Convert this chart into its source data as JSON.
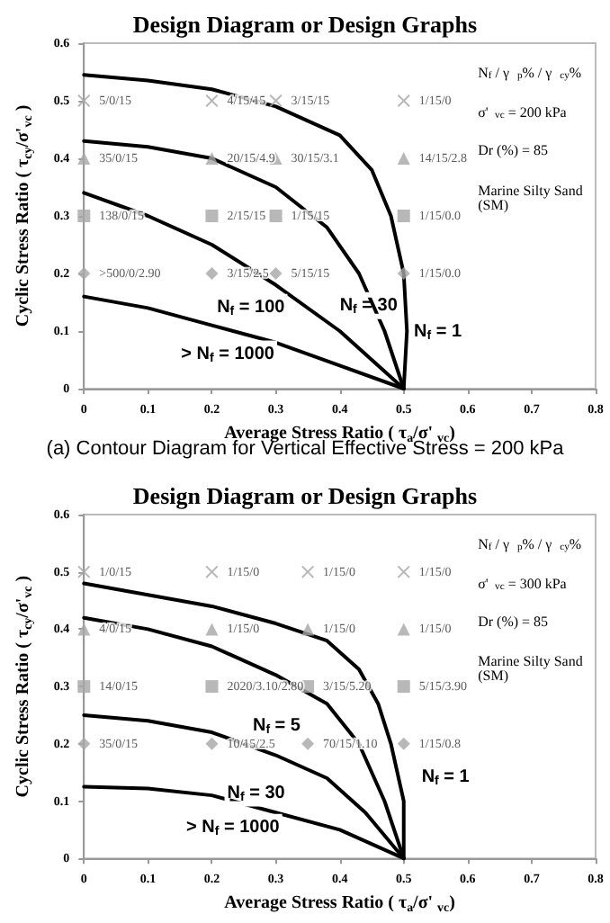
{
  "chart_data": [
    {
      "type": "line",
      "title": "Design Diagram or Design Graphs",
      "subtitle": "(a) Contour Diagram for Vertical Effective Stress = 200 kPa",
      "xlabel": "Average Stress Ratio ( τ$_{a}$/σ' $_{vc}$)",
      "ylabel": "Cyclic Stress Ratio ( τ$_{cy}$/σ'$_{vc}$ )",
      "xlim": [
        0,
        0.8
      ],
      "ylim": [
        0,
        0.6
      ],
      "xticks": [
        0,
        0.1,
        0.2,
        0.3,
        0.4,
        0.5,
        0.6,
        0.7,
        0.8
      ],
      "yticks": [
        0,
        0.1,
        0.2,
        0.3,
        0.4,
        0.5,
        0.6
      ],
      "grid": false,
      "marker": "none",
      "line_style": "solid",
      "annotations": [
        "N$_{f}$ / γ$_{p}$% / γ$_{cy}$%",
        "σ'$_{vc}$ = 200 kPa",
        "Dr (%) = 85",
        "Marine Silty Sand (SM)",
        "N$_{f}$ = 100",
        "N$_{f}$ = 30",
        "N$_{f}$ = 1",
        "> N$_{f}$ = 1000"
      ],
      "series": [
        {
          "type": "line",
          "color": "#000000",
          "x": [
            0,
            0.1,
            0.2,
            0.3,
            0.4,
            0.45,
            0.48,
            0.5,
            0.505,
            0.5
          ],
          "values": [
            0.545,
            0.535,
            0.52,
            0.49,
            0.44,
            0.38,
            0.3,
            0.2,
            0.1,
            0
          ]
        },
        {
          "type": "line",
          "color": "#000000",
          "x": [
            0,
            0.1,
            0.2,
            0.3,
            0.38,
            0.43,
            0.47,
            0.5
          ],
          "values": [
            0.43,
            0.42,
            0.4,
            0.35,
            0.28,
            0.2,
            0.1,
            0
          ]
        },
        {
          "type": "line",
          "color": "#000000",
          "x": [
            0,
            0.1,
            0.2,
            0.3,
            0.4,
            0.5
          ],
          "values": [
            0.34,
            0.3,
            0.25,
            0.18,
            0.1,
            0
          ]
        },
        {
          "type": "line",
          "color": "#000000",
          "x": [
            0,
            0.1,
            0.2,
            0.3,
            0.4,
            0.5
          ],
          "values": [
            0.16,
            0.14,
            0.11,
            0.08,
            0.04,
            0
          ]
        },
        {
          "type": "scatter",
          "marker": "cross",
          "color": "#a6a6a6",
          "x": [
            0,
            0.2,
            0.3,
            0.5
          ],
          "values": [
            0.5,
            0.5,
            0.5,
            0.5
          ],
          "value_labels": [
            "5/0/15",
            "4/15/15",
            "3/15/15",
            "1/15/0"
          ]
        },
        {
          "type": "scatter",
          "marker": "triangle",
          "color": "#a6a6a6",
          "x": [
            0,
            0.2,
            0.3,
            0.5
          ],
          "values": [
            0.4,
            0.4,
            0.4,
            0.4
          ],
          "value_labels": [
            "35/0/15",
            "20/15/4.9",
            "30/15/3.1",
            "14/15/2.8"
          ]
        },
        {
          "type": "scatter",
          "marker": "square",
          "color": "#a6a6a6",
          "x": [
            0,
            0.2,
            0.3,
            0.5
          ],
          "values": [
            0.3,
            0.3,
            0.3,
            0.3
          ],
          "value_labels": [
            "138/0/15",
            "2/15/15",
            "1/15/15",
            "1/15/0.0"
          ]
        },
        {
          "type": "scatter",
          "marker": "diamond",
          "color": "#a6a6a6",
          "x": [
            0,
            0.2,
            0.3,
            0.5
          ],
          "values": [
            0.2,
            0.2,
            0.2,
            0.2
          ],
          "value_labels": [
            ">500/0/2.90",
            "3/15/2.5",
            "5/15/15",
            "1/15/0.0"
          ]
        }
      ]
    },
    {
      "type": "line",
      "title": "Design Diagram or Design Graphs",
      "xlabel": "Average Stress Ratio ( τ$_{a}$/σ' $_{vc}$)",
      "ylabel": "Cyclic Stress Ratio ( τ$_{cy}$/σ'$_{vc}$ )",
      "xlim": [
        0,
        0.8
      ],
      "ylim": [
        0,
        0.6
      ],
      "xticks": [
        0,
        0.1,
        0.2,
        0.3,
        0.4,
        0.5,
        0.6,
        0.7,
        0.8
      ],
      "yticks": [
        0,
        0.1,
        0.2,
        0.3,
        0.4,
        0.5,
        0.6
      ],
      "grid": false,
      "marker": "none",
      "line_style": "solid",
      "annotations": [
        "N$_{f}$ / γ$_{p}$% / γ$_{cy}$%",
        "σ'$_{vc}$ = 300 kPa",
        "Dr (%) = 85",
        "Marine Silty Sand (SM)",
        "N$_{f}$ = 5",
        "N$_{f}$ = 30",
        "> N$_{f}$ = 1000",
        "N$_{f}$ = 1"
      ],
      "series": [
        {
          "type": "line",
          "color": "#000000",
          "x": [
            0,
            0.1,
            0.2,
            0.3,
            0.38,
            0.43,
            0.46,
            0.48,
            0.5,
            0.5
          ],
          "values": [
            0.48,
            0.46,
            0.44,
            0.41,
            0.38,
            0.33,
            0.27,
            0.2,
            0.1,
            0
          ]
        },
        {
          "type": "line",
          "color": "#000000",
          "x": [
            0,
            0.1,
            0.2,
            0.3,
            0.38,
            0.43,
            0.47,
            0.5
          ],
          "values": [
            0.42,
            0.4,
            0.37,
            0.32,
            0.27,
            0.2,
            0.1,
            0
          ]
        },
        {
          "type": "line",
          "color": "#000000",
          "x": [
            0,
            0.1,
            0.2,
            0.3,
            0.38,
            0.44,
            0.5
          ],
          "values": [
            0.25,
            0.24,
            0.22,
            0.18,
            0.14,
            0.08,
            0
          ]
        },
        {
          "type": "line",
          "color": "#000000",
          "x": [
            0,
            0.1,
            0.2,
            0.3,
            0.4,
            0.5
          ],
          "values": [
            0.125,
            0.122,
            0.11,
            0.08,
            0.05,
            0
          ]
        },
        {
          "type": "scatter",
          "marker": "cross",
          "color": "#a6a6a6",
          "x": [
            0,
            0.2,
            0.35,
            0.5
          ],
          "values": [
            0.5,
            0.5,
            0.5,
            0.5
          ],
          "value_labels": [
            "1/0/15",
            "1/15/0",
            "1/15/0",
            "1/15/0"
          ]
        },
        {
          "type": "scatter",
          "marker": "triangle",
          "color": "#a6a6a6",
          "x": [
            0,
            0.2,
            0.35,
            0.5
          ],
          "values": [
            0.4,
            0.4,
            0.4,
            0.4
          ],
          "value_labels": [
            "4/0/15",
            "1/15/0",
            "1/15/0",
            "1/15/0"
          ]
        },
        {
          "type": "scatter",
          "marker": "square",
          "color": "#a6a6a6",
          "x": [
            0,
            0.2,
            0.35,
            0.5
          ],
          "values": [
            0.3,
            0.3,
            0.3,
            0.3
          ],
          "value_labels": [
            "14/0/15",
            "2020/3.10/2.80",
            "3/15/5.20",
            "5/15/3.90"
          ]
        },
        {
          "type": "scatter",
          "marker": "diamond",
          "color": "#a6a6a6",
          "x": [
            0,
            0.2,
            0.35,
            0.5
          ],
          "values": [
            0.2,
            0.2,
            0.2,
            0.2
          ],
          "value_labels": [
            "35/0/15",
            "10/15/2.5",
            "70/15/1.10",
            "1/15/0.8"
          ]
        }
      ]
    }
  ]
}
